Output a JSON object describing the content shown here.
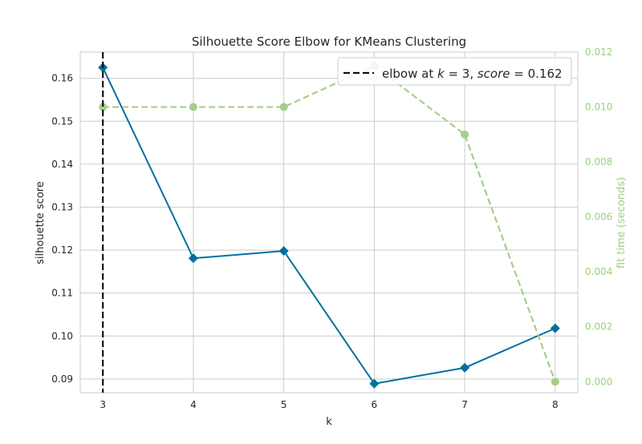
{
  "chart_data": {
    "type": "line",
    "title": "Silhouette Score Elbow for KMeans Clustering",
    "xlabel": "k",
    "ylabel": "silhouette score",
    "y2label": "fit time (seconds)",
    "x": [
      3,
      4,
      5,
      6,
      7,
      8
    ],
    "xticks": [
      "3",
      "4",
      "5",
      "6",
      "7",
      "8"
    ],
    "yticks": [
      "0.09",
      "0.10",
      "0.11",
      "0.12",
      "0.13",
      "0.14",
      "0.15",
      "0.16"
    ],
    "y2ticks": [
      "0.000",
      "0.002",
      "0.004",
      "0.006",
      "0.008",
      "0.010",
      "0.012"
    ],
    "xlim": [
      2.75,
      8.25
    ],
    "ylim": [
      0.0868,
      0.1661
    ],
    "y2lim": [
      -0.0004,
      0.012
    ],
    "series": [
      {
        "axis": "left",
        "values": [
          0.1625,
          0.1181,
          0.1198,
          0.0889,
          0.0926,
          0.1018
        ],
        "color": "#0070a0",
        "marker": "diamond",
        "linestyle": "solid"
      },
      {
        "axis": "right",
        "values": [
          0.01,
          0.01,
          0.01,
          0.0115,
          0.009,
          0.0
        ],
        "color": "#a4cf8b",
        "marker": "circle",
        "linestyle": "dashed"
      }
    ],
    "elbow": {
      "x": 3,
      "legend_prefix": "elbow at ",
      "k_symbol": "k",
      "k_equals": " = 3, ",
      "score_symbol": "score",
      "score_equals": " = 0.162",
      "color": "#111111"
    },
    "legend": {
      "placement": "top-right"
    },
    "grid": true
  }
}
